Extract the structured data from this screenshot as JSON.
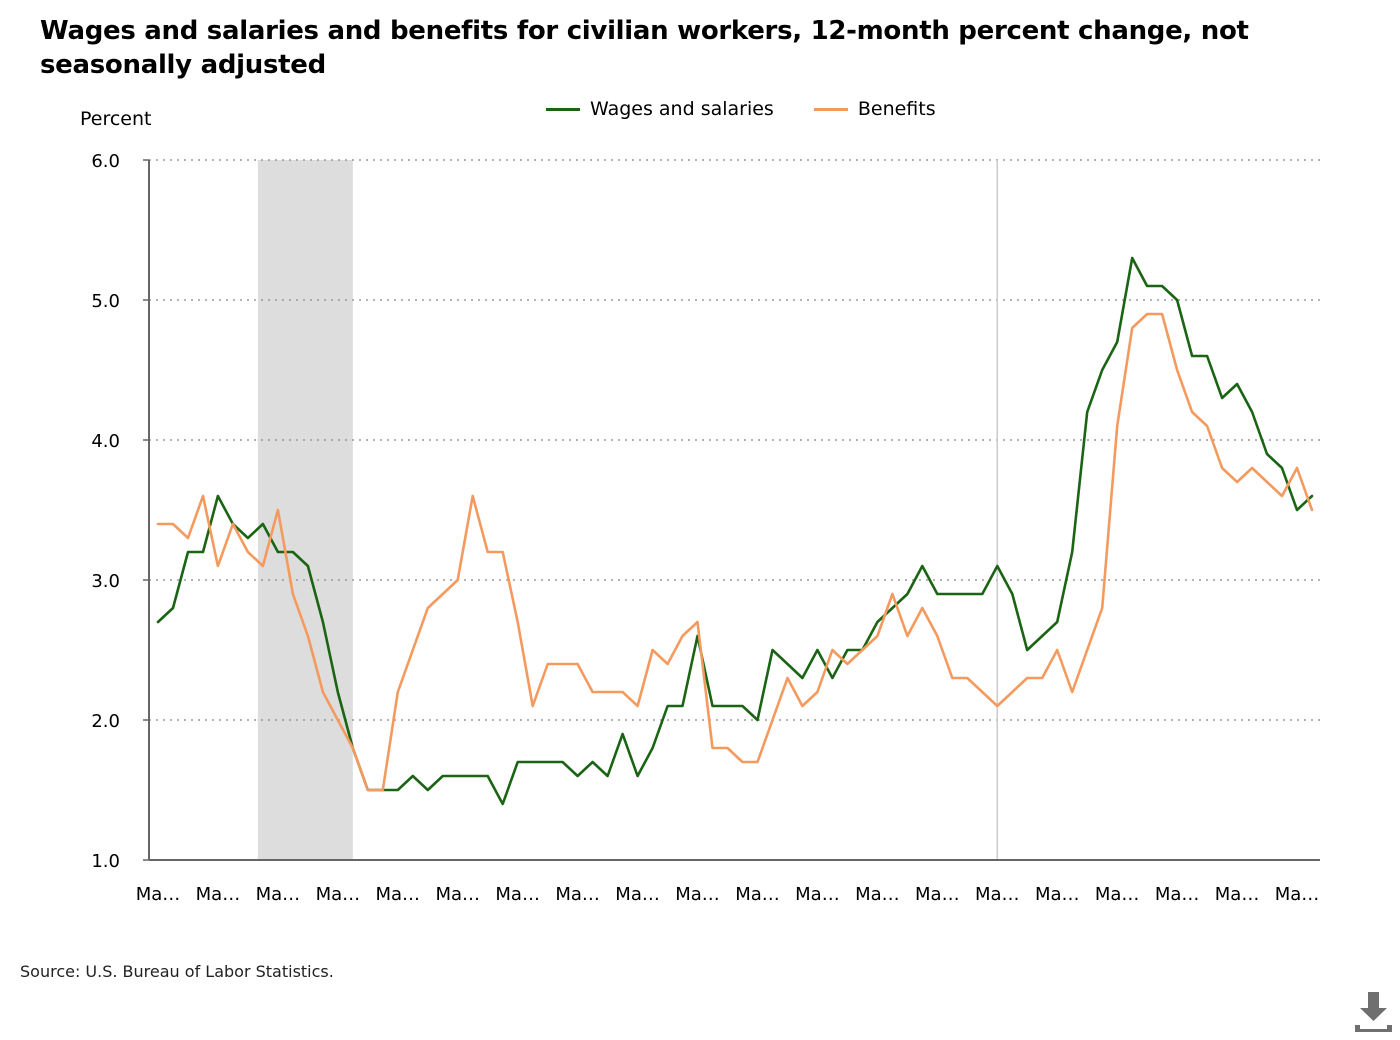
{
  "title": "Wages and salaries and benefits for civilian workers, 12-month percent change, not seasonally adjusted",
  "legend": {
    "items": [
      {
        "label": "Wages and salaries",
        "color": "#1a6414"
      },
      {
        "label": "Benefits",
        "color": "#f59a5e"
      }
    ]
  },
  "source": "Source: U.S. Bureau of Labor Statistics.",
  "download": {
    "icon": "download-icon"
  },
  "chart_data": {
    "type": "line",
    "title": "Wages and salaries and benefits for civilian workers, 12-month percent change, not seasonally adjusted",
    "xlabel": "",
    "ylabel": "Percent",
    "ylim": [
      1.0,
      6.0
    ],
    "yticks": [
      "1.0",
      "2.0",
      "3.0",
      "4.0",
      "5.0",
      "6.0"
    ],
    "x_tick_labels": [
      "Ma…",
      "Ma…",
      "Ma…",
      "Ma…",
      "Ma…",
      "Ma…",
      "Ma…",
      "Ma…",
      "Ma…",
      "Ma…",
      "Ma…",
      "Ma…",
      "Ma…",
      "Ma…",
      "Ma…",
      "Ma…",
      "Ma…",
      "Ma…",
      "Ma…",
      "Ma…"
    ],
    "x_tick_index": [
      0,
      4,
      8,
      12,
      16,
      20,
      24,
      28,
      32,
      36,
      40,
      44,
      48,
      52,
      56,
      60,
      64,
      68,
      72,
      76
    ],
    "point_count": 78,
    "grid": true,
    "grid_style": "dotted",
    "legend_position": "top-center",
    "recession_shade": {
      "start_index": 7,
      "end_index": 13,
      "color": "#dddddd"
    },
    "marker_line_index": 56,
    "series": [
      {
        "name": "Wages and salaries",
        "color": "#1a6414",
        "values": [
          2.7,
          2.8,
          3.2,
          3.2,
          3.6,
          3.4,
          3.3,
          3.4,
          3.2,
          3.2,
          3.1,
          2.7,
          2.2,
          1.8,
          1.5,
          1.5,
          1.5,
          1.6,
          1.5,
          1.6,
          1.6,
          1.6,
          1.6,
          1.4,
          1.7,
          1.7,
          1.7,
          1.7,
          1.6,
          1.7,
          1.6,
          1.9,
          1.6,
          1.8,
          2.1,
          2.1,
          2.6,
          2.1,
          2.1,
          2.1,
          2.0,
          2.5,
          2.4,
          2.3,
          2.5,
          2.3,
          2.5,
          2.5,
          2.7,
          2.8,
          2.9,
          3.1,
          2.9,
          2.9,
          2.9,
          2.9,
          3.1,
          2.9,
          2.5,
          2.6,
          2.7,
          3.2,
          4.2,
          4.5,
          4.7,
          5.3,
          5.1,
          5.1,
          5.0,
          4.6,
          4.6,
          4.3,
          4.4,
          4.2,
          3.9,
          3.8,
          3.5,
          3.6
        ]
      },
      {
        "name": "Benefits",
        "color": "#f59a5e",
        "values": [
          3.4,
          3.4,
          3.3,
          3.6,
          3.1,
          3.4,
          3.2,
          3.1,
          3.5,
          2.9,
          2.6,
          2.2,
          2.0,
          1.8,
          1.5,
          1.5,
          2.2,
          2.5,
          2.8,
          2.9,
          3.0,
          3.6,
          3.2,
          3.2,
          2.7,
          2.1,
          2.4,
          2.4,
          2.4,
          2.2,
          2.2,
          2.2,
          2.1,
          2.5,
          2.4,
          2.6,
          2.7,
          1.8,
          1.8,
          1.7,
          1.7,
          2.0,
          2.3,
          2.1,
          2.2,
          2.5,
          2.4,
          2.5,
          2.6,
          2.9,
          2.6,
          2.8,
          2.6,
          2.3,
          2.3,
          2.2,
          2.1,
          2.2,
          2.3,
          2.3,
          2.5,
          2.2,
          2.5,
          2.8,
          4.1,
          4.8,
          4.9,
          4.9,
          4.5,
          4.2,
          4.1,
          3.8,
          3.7,
          3.8,
          3.7,
          3.6,
          3.8,
          3.5
        ]
      }
    ]
  }
}
